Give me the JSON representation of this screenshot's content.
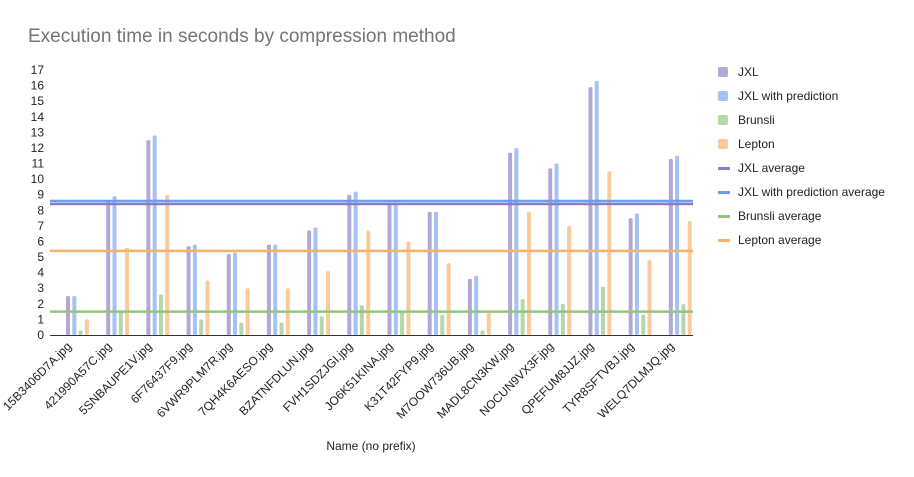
{
  "chart_data": {
    "type": "bar",
    "title": "Execution time in seconds by compression method",
    "xlabel": "Name (no prefix)",
    "ylabel": "",
    "ylim": [
      0,
      17
    ],
    "yticks": [
      0,
      1,
      2,
      3,
      4,
      5,
      6,
      7,
      8,
      9,
      10,
      11,
      12,
      13,
      14,
      15,
      16,
      17
    ],
    "grid": false,
    "legend_position": "right",
    "categories": [
      "15B3406D7A.jpg",
      "421990A57C.jpg",
      "5SNBAUPE1V.jpg",
      "6F76437F9.jpg",
      "6VWR9PLM7R.jpg",
      "7QH4K6AESO.jpg",
      "BZATNFDLUN.jpg",
      "FVH1SDZJGI.jpg",
      "JO6K51KINA.jpg",
      "K31T42FYP9.jpg",
      "M7OOW736UB.jpg",
      "MADL8CN3KW.jpg",
      "NOCUN9VX3F.jpg",
      "QPEFUM8JJZ.jpg",
      "TYR8SFTVBJ.jpg",
      "WELQ7DLMJQ.jpg"
    ],
    "series": [
      {
        "name": "JXL",
        "color": "#b4a7d6",
        "values": [
          2.5,
          8.6,
          12.5,
          5.7,
          5.2,
          5.8,
          6.7,
          9.0,
          8.5,
          7.9,
          3.6,
          11.7,
          10.7,
          15.9,
          7.5,
          11.3
        ]
      },
      {
        "name": "JXL with prediction",
        "color": "#a4c2f4",
        "values": [
          2.5,
          8.9,
          12.8,
          5.8,
          5.3,
          5.8,
          6.9,
          9.2,
          8.5,
          7.9,
          3.8,
          12.0,
          11.0,
          16.3,
          7.8,
          11.5
        ]
      },
      {
        "name": "Brunsli",
        "color": "#b6d7a8",
        "values": [
          0.3,
          1.5,
          2.6,
          1.0,
          0.8,
          0.8,
          1.2,
          1.9,
          1.5,
          1.3,
          0.3,
          2.3,
          2.0,
          3.1,
          1.3,
          2.0
        ]
      },
      {
        "name": "Lepton",
        "color": "#f9cb9c",
        "values": [
          1.0,
          5.6,
          9.0,
          3.5,
          3.0,
          3.0,
          4.1,
          6.7,
          6.0,
          4.6,
          1.4,
          7.9,
          7.0,
          10.5,
          4.8,
          7.3
        ]
      }
    ],
    "averages": [
      {
        "name": "JXL average",
        "color": "#8e7cc3",
        "value": 8.4
      },
      {
        "name": "JXL with prediction average",
        "color": "#6d9eeb",
        "value": 8.6
      },
      {
        "name": "Brunsli average",
        "color": "#93c47d",
        "value": 1.5
      },
      {
        "name": "Lepton average",
        "color": "#f6b26b",
        "value": 5.4
      }
    ]
  }
}
